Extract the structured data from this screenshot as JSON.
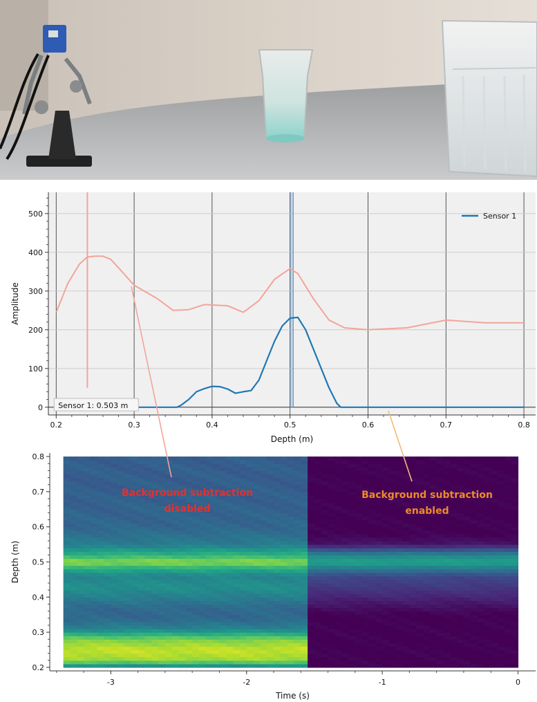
{
  "colors": {
    "sensor_line": "#1f77b4",
    "reference_line": "#f4a39a",
    "annotation_disabled": "#e8302a",
    "annotation_enabled": "#f08a24",
    "arrow_disabled": "#f2a49b",
    "arrow_enabled": "#f5b877"
  },
  "photo": {
    "description_icons": [
      "sensor-rig-icon",
      "small-glass-icon",
      "large-glass-icon"
    ]
  },
  "chart_data": [
    {
      "type": "line",
      "xlabel": "Depth (m)",
      "ylabel": "Amplitude",
      "xlim": [
        0.19,
        0.815
      ],
      "ylim": [
        -20,
        555
      ],
      "x_ticks": [
        0.2,
        0.3,
        0.4,
        0.5,
        0.6,
        0.7,
        0.8
      ],
      "x_tick_labels": [
        "0.2",
        "0.3",
        "0.4",
        "0.5",
        "0.6",
        "0.7",
        "0.8"
      ],
      "y_ticks": [
        0,
        100,
        200,
        300,
        400,
        500
      ],
      "y_tick_labels": [
        "0",
        "100",
        "200",
        "300",
        "400",
        "500"
      ],
      "grid": true,
      "legend_placement": "top-right",
      "series": [
        {
          "name": "Sensor 1",
          "x": [
            0.2,
            0.25,
            0.3,
            0.35,
            0.355,
            0.36,
            0.37,
            0.38,
            0.39,
            0.4,
            0.41,
            0.42,
            0.43,
            0.44,
            0.45,
            0.46,
            0.47,
            0.48,
            0.49,
            0.5,
            0.51,
            0.52,
            0.53,
            0.54,
            0.55,
            0.56,
            0.565,
            0.6,
            0.7,
            0.8
          ],
          "y": [
            0,
            0,
            0,
            0,
            0,
            5,
            20,
            40,
            48,
            54,
            53,
            47,
            36,
            40,
            43,
            70,
            120,
            170,
            210,
            230,
            232,
            200,
            150,
            100,
            50,
            10,
            0,
            0,
            0,
            0
          ]
        },
        {
          "x": [
            0.2,
            0.215,
            0.23,
            0.24,
            0.25,
            0.26,
            0.27,
            0.28,
            0.3,
            0.33,
            0.35,
            0.37,
            0.39,
            0.42,
            0.44,
            0.46,
            0.48,
            0.5,
            0.51,
            0.53,
            0.55,
            0.57,
            0.6,
            0.65,
            0.7,
            0.75,
            0.8
          ],
          "y": [
            245,
            320,
            370,
            388,
            390,
            390,
            382,
            360,
            315,
            280,
            250,
            252,
            265,
            262,
            245,
            275,
            330,
            358,
            345,
            280,
            225,
            205,
            200,
            205,
            225,
            218,
            218
          ]
        }
      ],
      "vertical_markers": [
        {
          "x": 0.24,
          "y_range": [
            50,
            555
          ]
        },
        {
          "x": 0.503,
          "y_range": [
            0,
            555
          ]
        }
      ],
      "cursor_readout": "Sensor 1: 0.503 m"
    },
    {
      "type": "heatmap",
      "xlabel": "Time (s)",
      "ylabel": "Depth (m)",
      "xlim": [
        -3.45,
        0.13
      ],
      "ylim": [
        0.19,
        0.81
      ],
      "x_ticks": [
        -3,
        -2,
        -1,
        0
      ],
      "x_tick_labels": [
        "-3",
        "-2",
        "-1",
        "0"
      ],
      "y_ticks": [
        0.2,
        0.3,
        0.4,
        0.5,
        0.6,
        0.7,
        0.8
      ],
      "y_tick_labels": [
        "0.2",
        "0.3",
        "0.4",
        "0.5",
        "0.6",
        "0.7",
        "0.8"
      ],
      "time_range": [
        -3.35,
        0
      ],
      "depth_range": [
        0.2,
        0.8
      ],
      "switch_time": -1.55,
      "colormap": "viridis",
      "disabled_profile": [
        {
          "depth": 0.2,
          "value": 0.4
        },
        {
          "depth": 0.22,
          "value": 0.85
        },
        {
          "depth": 0.25,
          "value": 0.92
        },
        {
          "depth": 0.28,
          "value": 0.8
        },
        {
          "depth": 0.31,
          "value": 0.45
        },
        {
          "depth": 0.34,
          "value": 0.33
        },
        {
          "depth": 0.37,
          "value": 0.34
        },
        {
          "depth": 0.4,
          "value": 0.43
        },
        {
          "depth": 0.43,
          "value": 0.5
        },
        {
          "depth": 0.46,
          "value": 0.45
        },
        {
          "depth": 0.48,
          "value": 0.6
        },
        {
          "depth": 0.5,
          "value": 0.84
        },
        {
          "depth": 0.52,
          "value": 0.65
        },
        {
          "depth": 0.55,
          "value": 0.42
        },
        {
          "depth": 0.6,
          "value": 0.33
        },
        {
          "depth": 0.7,
          "value": 0.3
        },
        {
          "depth": 0.8,
          "value": 0.3
        }
      ],
      "enabled_profile": [
        {
          "depth": 0.2,
          "value": 0.0
        },
        {
          "depth": 0.35,
          "value": 0.0
        },
        {
          "depth": 0.39,
          "value": 0.08
        },
        {
          "depth": 0.43,
          "value": 0.17
        },
        {
          "depth": 0.46,
          "value": 0.22
        },
        {
          "depth": 0.48,
          "value": 0.4
        },
        {
          "depth": 0.5,
          "value": 0.58
        },
        {
          "depth": 0.52,
          "value": 0.46
        },
        {
          "depth": 0.55,
          "value": 0.06
        },
        {
          "depth": 0.58,
          "value": 0.0
        },
        {
          "depth": 0.8,
          "value": 0.0
        }
      ],
      "annotations": [
        {
          "lines": [
            "Background subtraction",
            "disabled"
          ],
          "color_key": "annotation_disabled"
        },
        {
          "lines": [
            "Background subtraction",
            "enabled"
          ],
          "color_key": "annotation_enabled"
        }
      ]
    }
  ]
}
